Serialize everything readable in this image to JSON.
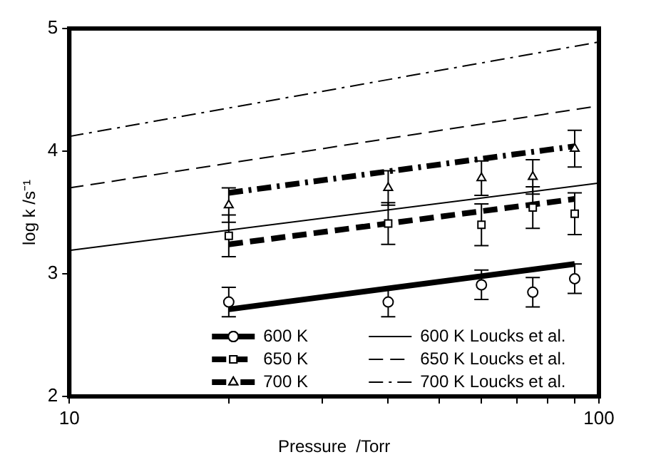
{
  "chart_data": {
    "type": "scatter",
    "xlabel": "Pressure  /Torr",
    "ylabel": "log k /s⁻¹",
    "log": "x",
    "xlim": [
      10,
      100
    ],
    "ylim": [
      2,
      5
    ],
    "xticks": [
      10,
      {
        "value": 20,
        "label": null
      },
      {
        "value": 30,
        "label": null
      },
      {
        "value": 40,
        "label": null
      },
      {
        "value": 50,
        "label": null
      },
      {
        "value": 60,
        "label": null
      },
      {
        "value": 70,
        "label": null
      },
      {
        "value": 80,
        "label": null
      },
      {
        "value": 90,
        "label": null
      },
      100
    ],
    "yticks": [
      2,
      3,
      4,
      5
    ],
    "grid": false,
    "legend": "bottom",
    "series": [
      {
        "color": "#000000",
        "marker": "circle",
        "x": [
          20,
          40,
          60,
          75,
          90
        ],
        "values": [
          2.77,
          2.77,
          2.91,
          2.85,
          2.96
        ],
        "errors": [
          0.12,
          0.12,
          0.12,
          0.12,
          0.12
        ]
      },
      {
        "type": "line",
        "name": "600 K",
        "color": "#000000",
        "line_style": "solid",
        "marker": "none",
        "x": [
          20,
          90
        ],
        "values": [
          2.71,
          3.08
        ]
      },
      {
        "color": "#000000",
        "marker": "square",
        "x": [
          20,
          40,
          60,
          75,
          90
        ],
        "values": [
          3.31,
          3.41,
          3.4,
          3.54,
          3.49
        ],
        "errors": [
          0.17,
          0.17,
          0.17,
          0.17,
          0.17
        ]
      },
      {
        "type": "line",
        "name": "650 K",
        "color": "#000000",
        "line_style": "dashed",
        "marker": "none",
        "x": [
          20,
          90
        ],
        "values": [
          3.24,
          3.61
        ]
      },
      {
        "color": "#000000",
        "marker": "triangle",
        "x": [
          20,
          40,
          60,
          75,
          90
        ],
        "values": [
          3.56,
          3.7,
          3.78,
          3.79,
          4.02
        ],
        "errors": [
          0.14,
          0.14,
          0.14,
          0.14,
          0.15
        ]
      },
      {
        "type": "line",
        "name": "700 K",
        "color": "#000000",
        "line_style": "dashdot",
        "marker": "none",
        "x": [
          20,
          90
        ],
        "values": [
          3.66,
          4.04
        ]
      },
      {
        "type": "line",
        "name": "600 K Loucks et al.",
        "color": "#000000",
        "line_style": "solid",
        "marker": "none",
        "x": [
          10,
          100
        ],
        "values": [
          3.19,
          3.74
        ]
      },
      {
        "type": "line",
        "name": "650 K Loucks et al.",
        "color": "#000000",
        "line_style": "dashed",
        "marker": "none",
        "x": [
          10,
          100
        ],
        "values": [
          3.7,
          4.37
        ]
      },
      {
        "type": "line",
        "name": "700 K Loucks et al.",
        "color": "#000000",
        "line_style": "dashdot",
        "marker": "none",
        "x": [
          10,
          100
        ],
        "values": [
          4.12,
          4.89
        ]
      }
    ]
  }
}
